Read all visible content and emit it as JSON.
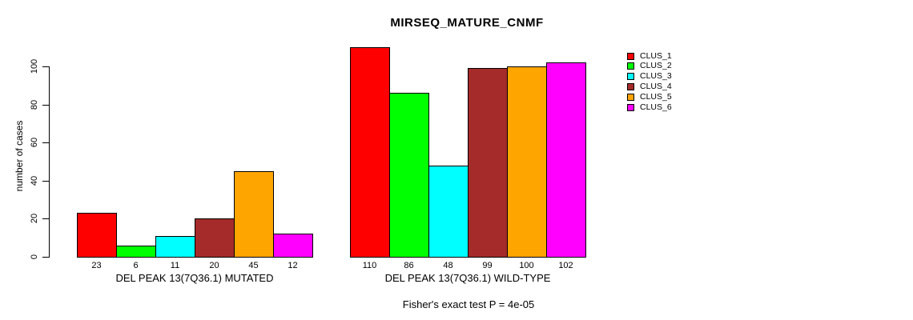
{
  "chart_data": {
    "type": "bar",
    "title": "MIRSEQ_MATURE_CNMF",
    "ylabel": "number of cases",
    "xlabel": "",
    "footnote": "Fisher's exact test P = 4e-05",
    "yticks": [
      0,
      20,
      40,
      60,
      80,
      100
    ],
    "ylim": [
      0,
      110
    ],
    "grid": false,
    "legend_position": "right",
    "series": [
      {
        "name": "CLUS_1",
        "color": "#FF0000"
      },
      {
        "name": "CLUS_2",
        "color": "#00FF00"
      },
      {
        "name": "CLUS_3",
        "color": "#00FFFF"
      },
      {
        "name": "CLUS_4",
        "color": "#A52A2A"
      },
      {
        "name": "CLUS_5",
        "color": "#FFA500"
      },
      {
        "name": "CLUS_6",
        "color": "#FF00FF"
      }
    ],
    "groups": [
      {
        "label": "DEL PEAK 13(7Q36.1) MUTATED",
        "values": [
          23,
          6,
          11,
          20,
          45,
          12
        ]
      },
      {
        "label": "DEL PEAK 13(7Q36.1) WILD-TYPE",
        "values": [
          110,
          86,
          48,
          99,
          100,
          102
        ]
      }
    ]
  }
}
